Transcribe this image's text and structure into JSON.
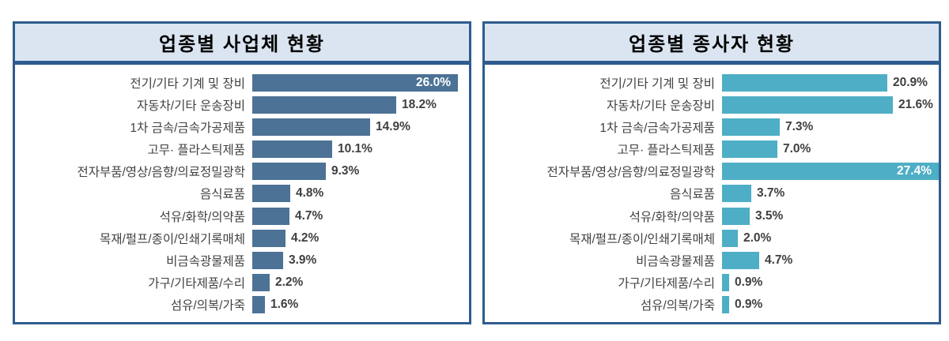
{
  "theme": {
    "page_background": "#ffffff",
    "panel_border_color": "#2e5c8f",
    "title_background": "#dbe5f1",
    "title_text_color": "#000000",
    "category_text_color": "#404040",
    "value_text_color": "#3f3f3f",
    "inside_value_text_color": "#ffffff",
    "left_bar_color": "#4c7295",
    "right_bar_color": "#4eaec5"
  },
  "chart_data": [
    {
      "type": "bar",
      "orientation": "horizontal",
      "title": "업종별 사업체 현황",
      "categories": [
        "전기/기타 기계 및 장비",
        "자동차/기타 운송장비",
        "1차 금속/금속가공제품",
        "고무· 플라스틱제품",
        "전자부품/영상/음향/의료정밀광학",
        "음식료품",
        "석유/화학/의약품",
        "목재/펄프/종이/인쇄기록매체",
        "비금속광물제품",
        "가구/기타제품/수리",
        "섬유/의복/가죽"
      ],
      "values": [
        26.0,
        18.2,
        14.9,
        10.1,
        9.3,
        4.8,
        4.7,
        4.2,
        3.9,
        2.2,
        1.6
      ],
      "value_labels": [
        "26.0%",
        "18.2%",
        "14.9%",
        "10.1%",
        "9.3%",
        "4.8%",
        "4.7%",
        "4.2%",
        "3.9%",
        "2.2%",
        "1.6%"
      ],
      "bar_color": "#4c7295",
      "inside_label_index": 0,
      "xlim": [
        0,
        28
      ],
      "grid": false,
      "legend": "none",
      "xlabel": "",
      "ylabel": ""
    },
    {
      "type": "bar",
      "orientation": "horizontal",
      "title": "업종별 종사자 현황",
      "categories": [
        "전기/기타 기계 및 장비",
        "자동차/기타 운송장비",
        "1차 금속/금속가공제품",
        "고무· 플라스틱제품",
        "전자부품/영상/음향/의료정밀광학",
        "음식료품",
        "석유/화학/의약품",
        "목재/펄프/종이/인쇄기록매체",
        "비금속광물제품",
        "가구/기타제품/수리",
        "섬유/의복/가죽"
      ],
      "values": [
        20.9,
        21.6,
        7.3,
        7.0,
        27.4,
        3.7,
        3.5,
        2.0,
        4.7,
        0.9,
        0.9
      ],
      "value_labels": [
        "20.9%",
        "21.6%",
        "7.3%",
        "7.0%",
        "27.4%",
        "3.7%",
        "3.5%",
        "2.0%",
        "4.7%",
        "0.9%",
        "0.9%"
      ],
      "bar_color": "#4eaec5",
      "inside_label_index": 4,
      "xlim": [
        0,
        28
      ],
      "grid": false,
      "legend": "none",
      "xlabel": "",
      "ylabel": ""
    }
  ]
}
